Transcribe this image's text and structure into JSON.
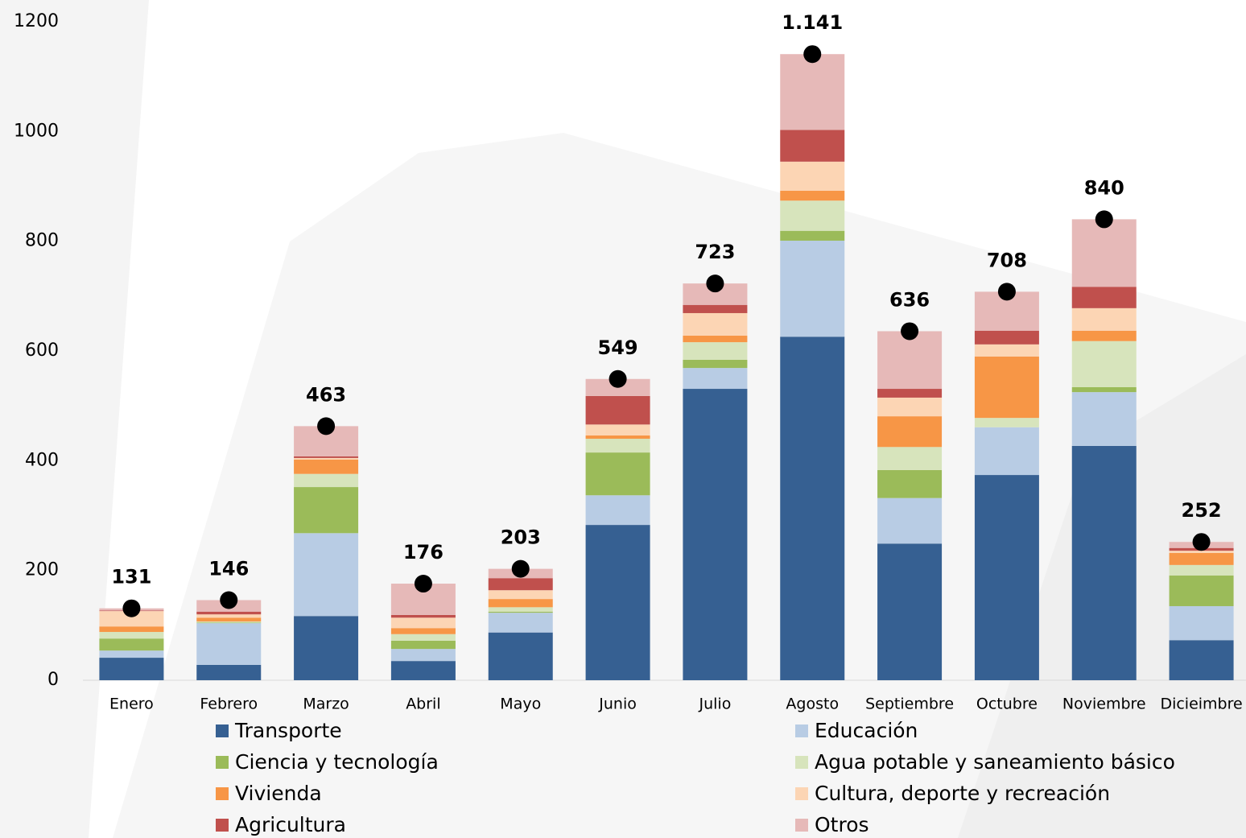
{
  "chart_data": {
    "type": "stacked_bar",
    "categories": [
      "Enero",
      "Febrero",
      "Marzo",
      "Abril",
      "Mayo",
      "Junio",
      "Julio",
      "Agosto",
      "Septiembre",
      "Octubre",
      "Noviembre",
      "Dicieimbre"
    ],
    "series": [
      {
        "name": "Transporte",
        "color": "#366092",
        "values": [
          41,
          28,
          117,
          35,
          87,
          283,
          531,
          626,
          249,
          374,
          427,
          73
        ]
      },
      {
        "name": "Educación",
        "color": "#b8cce4",
        "values": [
          13,
          76,
          151,
          22,
          36,
          54,
          38,
          175,
          83,
          87,
          98,
          62
        ]
      },
      {
        "name": "Ciencia y tecnología",
        "color": "#9bbb59",
        "values": [
          22,
          1,
          84,
          15,
          2,
          78,
          15,
          18,
          51,
          0,
          9,
          56
        ]
      },
      {
        "name": "Agua potable y saneamiento básico",
        "color": "#d7e4bc",
        "values": [
          12,
          2,
          24,
          12,
          8,
          25,
          32,
          55,
          42,
          17,
          84,
          19
        ]
      },
      {
        "name": "Vivienda",
        "color": "#f79646",
        "values": [
          10,
          7,
          26,
          11,
          15,
          6,
          12,
          18,
          56,
          112,
          19,
          22
        ]
      },
      {
        "name": "Cultura, deporte y recreación",
        "color": "#fcd5b4",
        "values": [
          28,
          6,
          3,
          19,
          16,
          20,
          41,
          53,
          34,
          22,
          41,
          4
        ]
      },
      {
        "name": "Agricultura",
        "color": "#c0504d",
        "values": [
          1,
          5,
          3,
          5,
          22,
          52,
          15,
          58,
          16,
          25,
          39,
          5
        ]
      },
      {
        "name": "Otros",
        "color": "#e6b9b8",
        "values": [
          4,
          21,
          55,
          57,
          17,
          31,
          39,
          138,
          105,
          71,
          123,
          11
        ]
      }
    ],
    "totals": {
      "values": [
        131,
        146,
        463,
        176,
        203,
        549,
        723,
        1141,
        636,
        708,
        840,
        252
      ],
      "value_labels": [
        "131",
        "146",
        "463",
        "176",
        "203",
        "549",
        "723",
        "1.141",
        "636",
        "708",
        "840",
        "252"
      ],
      "color": "#000000"
    },
    "ylim": [
      0,
      1200
    ],
    "yticks": [
      0,
      200,
      400,
      600,
      800,
      1000,
      1200
    ]
  }
}
